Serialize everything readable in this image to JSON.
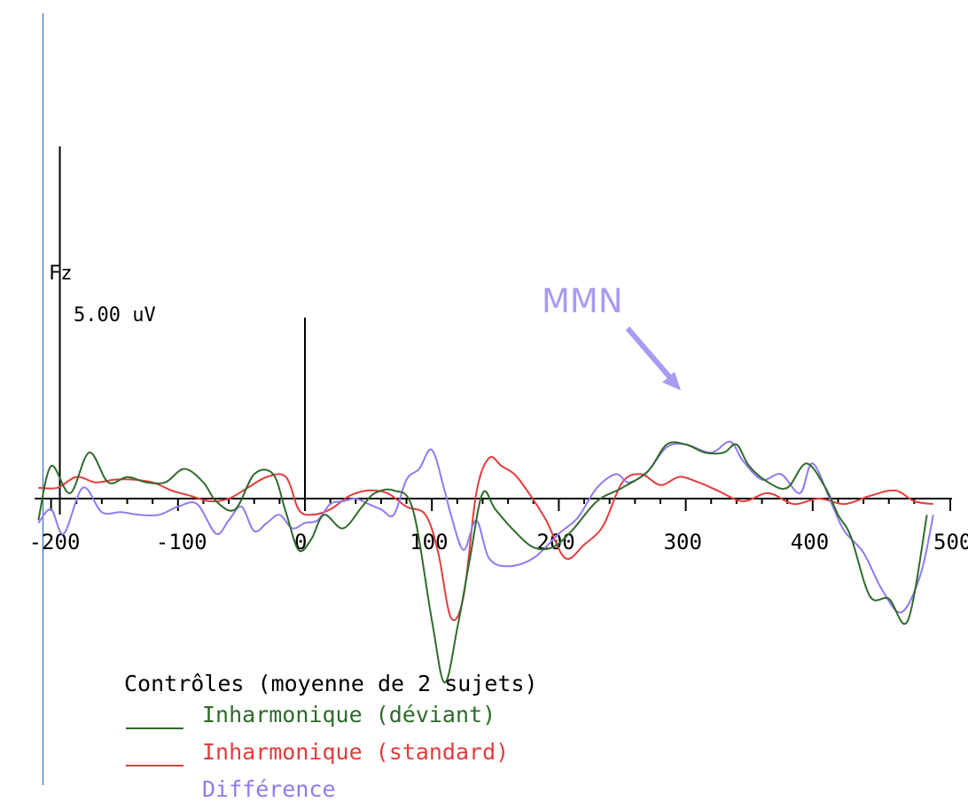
{
  "chart_data": {
    "type": "line",
    "channel_label": "Fz",
    "scale_label": "5.00 uV",
    "annotation": "MMN",
    "xlim": [
      -210,
      500
    ],
    "x_ticks": [
      -200,
      -100,
      0,
      100,
      200,
      300,
      400,
      500
    ],
    "x_tick_labels": [
      "-200",
      "-100",
      "0",
      "100",
      "200",
      "300",
      "400",
      "500"
    ],
    "legend_title": "Contrôles (moyenne de 2 sujets)",
    "series": [
      {
        "name": "Inharmonique (déviant)",
        "color": "#2e6b2a",
        "x": [
          -210,
          -200,
          -185,
          -170,
          -155,
          -140,
          -125,
          -110,
          -95,
          -80,
          -70,
          -55,
          -40,
          -25,
          -15,
          -5,
          5,
          15,
          30,
          45,
          55,
          70,
          85,
          100,
          110,
          120,
          130,
          140,
          150,
          165,
          180,
          195,
          210,
          230,
          250,
          270,
          285,
          300,
          315,
          330,
          340,
          350,
          365,
          380,
          395,
          410,
          420,
          430,
          445,
          460,
          475,
          490
        ],
        "y": [
          -0.8,
          1.2,
          0.2,
          1.7,
          0.6,
          0.8,
          0.6,
          0.6,
          1.1,
          0.6,
          -0.1,
          -0.4,
          0.9,
          0.9,
          -0.5,
          -1.9,
          -1.5,
          -0.6,
          -1.1,
          -0.3,
          0.2,
          0.3,
          -0.4,
          -4.5,
          -6.8,
          -4.8,
          -2.2,
          0.2,
          -0.4,
          -1.2,
          -1.8,
          -1.8,
          -1.2,
          -0.1,
          0.4,
          1.0,
          2.0,
          2.0,
          1.7,
          1.7,
          2.0,
          1.2,
          0.6,
          0.4,
          1.3,
          0.4,
          -0.6,
          -1.4,
          -3.6,
          -3.7,
          -4.5,
          -0.6
        ]
      },
      {
        "name": "Inharmonique (standard)",
        "color": "#e53b3b",
        "x": [
          -210,
          -195,
          -180,
          -165,
          -150,
          -135,
          -120,
          -105,
          -90,
          -75,
          -60,
          -45,
          -30,
          -15,
          -5,
          5,
          20,
          35,
          50,
          65,
          80,
          95,
          105,
          115,
          125,
          135,
          145,
          155,
          165,
          175,
          190,
          205,
          220,
          235,
          250,
          265,
          280,
          295,
          310,
          325,
          345,
          365,
          385,
          405,
          425,
          445,
          465,
          480,
          495
        ],
        "y": [
          0.4,
          0.4,
          0.8,
          0.6,
          0.7,
          0.7,
          0.6,
          0.3,
          0.1,
          -0.1,
          0.0,
          0.4,
          0.8,
          0.8,
          -0.4,
          -0.6,
          -0.4,
          0.1,
          0.3,
          0.2,
          -0.3,
          -0.6,
          -2.0,
          -4.4,
          -3.6,
          0.2,
          1.5,
          1.2,
          0.9,
          0.3,
          -0.8,
          -2.2,
          -1.7,
          -1.0,
          0.6,
          0.9,
          0.5,
          0.8,
          0.6,
          0.3,
          -0.1,
          0.2,
          -0.2,
          0.0,
          -0.2,
          0.1,
          0.3,
          -0.1,
          -0.2
        ]
      },
      {
        "name": "Différence",
        "color": "#8f7af0",
        "x": [
          -210,
          -200,
          -190,
          -175,
          -160,
          -145,
          -130,
          -115,
          -100,
          -85,
          -70,
          -60,
          -50,
          -40,
          -30,
          -20,
          -10,
          0,
          10,
          20,
          30,
          40,
          50,
          60,
          70,
          80,
          90,
          100,
          110,
          115,
          125,
          135,
          145,
          160,
          180,
          200,
          215,
          230,
          245,
          255,
          270,
          285,
          300,
          320,
          335,
          345,
          360,
          375,
          390,
          400,
          415,
          425,
          440,
          455,
          470,
          485,
          495
        ],
        "y": [
          -0.9,
          -0.4,
          -1.3,
          0.4,
          -0.5,
          -0.5,
          -0.6,
          -0.6,
          -0.3,
          -0.2,
          -1.3,
          -0.8,
          -0.3,
          -1.2,
          -0.9,
          -0.6,
          -1.1,
          -0.9,
          -0.8,
          -0.2,
          -0.1,
          0.0,
          -0.2,
          -0.4,
          -0.6,
          0.7,
          1.1,
          1.8,
          0.3,
          -0.6,
          -1.9,
          -0.8,
          -2.2,
          -2.5,
          -2.2,
          -1.3,
          -0.7,
          0.4,
          0.9,
          0.6,
          1.0,
          1.9,
          2.0,
          1.7,
          2.1,
          1.4,
          0.7,
          0.9,
          0.2,
          1.3,
          -0.2,
          -1.2,
          -2.0,
          -3.4,
          -4.2,
          -2.8,
          -0.6
        ]
      }
    ]
  }
}
